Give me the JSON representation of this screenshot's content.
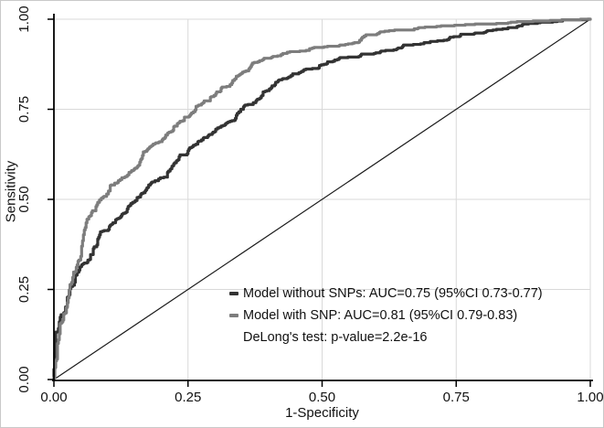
{
  "figure": {
    "background": "#ffffff",
    "border_color": "#c9c9c9"
  },
  "chart_data": {
    "type": "line",
    "subtype": "roc-curve",
    "title": "",
    "xlabel": "1-Specificity",
    "ylabel": "Sensitivity",
    "xlim": [
      0,
      1
    ],
    "ylim": [
      0,
      1
    ],
    "xtick_values": [
      0,
      0.25,
      0.5,
      0.75,
      1
    ],
    "ytick_values": [
      0,
      0.25,
      0.5,
      0.75,
      1
    ],
    "xtick_labels": [
      "0.00",
      "0.25",
      "0.50",
      "0.75",
      "1.00"
    ],
    "ytick_labels": [
      "0.00",
      "0.25",
      "0.50",
      "0.75",
      "1.00"
    ],
    "grid": true,
    "grid_color": "#d9d9d9",
    "axis_color": "#000000",
    "tick_label_color": "#111111",
    "series": [
      {
        "name": "Model without SNPs",
        "auc": 0.75,
        "ci": "0.73-0.77",
        "color": "#333333",
        "legend": "Model without SNPs: AUC=0.75 (95%CI 0.73-0.77)"
      },
      {
        "name": "Model with SNP",
        "auc": 0.81,
        "ci": "0.79-0.83",
        "color": "#7d7d7d",
        "legend": "Model with SNP: AUC=0.81 (95%CI 0.79-0.83)"
      }
    ],
    "reference_line": {
      "type": "diagonal",
      "from": [
        0,
        0
      ],
      "to": [
        1,
        1
      ],
      "color": "#1a1a1a"
    },
    "annotation": "DeLong's test: p-value=2.2e-16",
    "legend_position": "inside lower-right"
  }
}
